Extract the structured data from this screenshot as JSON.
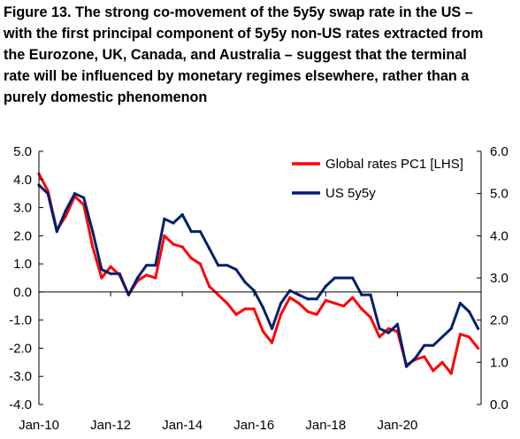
{
  "title_lines": [
    "Figure 13. The strong co-movement of the 5y5y swap rate in the US –",
    "with the first principal component of 5y5y non-US rates extracted from",
    "the Eurozone, UK, Canada, and Australia – suggest that the terminal",
    "rate will be influenced by monetary regimes elsewhere, rather than a",
    "purely domestic phenomenon"
  ],
  "chart_data": {
    "type": "line",
    "title": "Figure 13. The strong co-movement of the 5y5y swap rate in the US – with the first principal component of 5y5y non-US rates extracted from the Eurozone, UK, Canada, and Australia – suggest that the terminal rate will be influenced by monetary regimes elsewhere, rather than a purely domestic phenomenon",
    "x_ticks": [
      "Jan-10",
      "Jan-12",
      "Jan-14",
      "Jan-16",
      "Jan-18",
      "Jan-20"
    ],
    "x_range": [
      "2010-01",
      "2022-05"
    ],
    "y_left": {
      "range": [
        -4.0,
        5.0
      ],
      "ticks": [
        "5.0",
        "4.0",
        "3.0",
        "2.0",
        "1.0",
        "0.0",
        "-1.0",
        "-2.0",
        "-3.0",
        "-4.0"
      ]
    },
    "y_right": {
      "range": [
        0.0,
        6.0
      ],
      "ticks": [
        "6.0",
        "5.0",
        "4.0",
        "3.0",
        "2.0",
        "1.0",
        "0.0"
      ]
    },
    "zero_line": true,
    "grid": false,
    "legend_position": "top-right",
    "series": [
      {
        "name": "Global rates PC1 [LHS]",
        "axis": "left",
        "color": "#ff0000",
        "x": [
          "2010-01",
          "2010-04",
          "2010-07",
          "2010-10",
          "2011-01",
          "2011-04",
          "2011-07",
          "2011-10",
          "2012-01",
          "2012-04",
          "2012-07",
          "2012-10",
          "2013-01",
          "2013-04",
          "2013-07",
          "2013-10",
          "2014-01",
          "2014-04",
          "2014-07",
          "2014-10",
          "2015-01",
          "2015-04",
          "2015-07",
          "2015-10",
          "2016-01",
          "2016-04",
          "2016-07",
          "2016-10",
          "2017-01",
          "2017-04",
          "2017-07",
          "2017-10",
          "2018-01",
          "2018-04",
          "2018-07",
          "2018-10",
          "2019-01",
          "2019-04",
          "2019-07",
          "2019-10",
          "2020-01",
          "2020-04",
          "2020-07",
          "2020-10",
          "2021-01",
          "2021-04",
          "2021-07",
          "2021-10",
          "2022-01",
          "2022-04"
        ],
        "values": [
          4.2,
          3.6,
          2.2,
          2.7,
          3.4,
          3.1,
          1.6,
          0.5,
          0.9,
          0.6,
          -0.1,
          0.4,
          0.6,
          0.5,
          2.0,
          1.7,
          1.6,
          1.2,
          1.0,
          0.2,
          -0.1,
          -0.4,
          -0.8,
          -0.6,
          -0.6,
          -1.4,
          -1.8,
          -0.8,
          -0.2,
          -0.4,
          -0.7,
          -0.8,
          -0.3,
          -0.4,
          -0.5,
          -0.2,
          -0.6,
          -0.9,
          -1.6,
          -1.3,
          -1.4,
          -2.6,
          -2.4,
          -2.3,
          -2.8,
          -2.5,
          -2.9,
          -1.5,
          -1.6,
          -2.0
        ]
      },
      {
        "name": "US 5y5y",
        "axis": "right",
        "color": "#001f6e",
        "x": [
          "2010-01",
          "2010-04",
          "2010-07",
          "2010-10",
          "2011-01",
          "2011-04",
          "2011-07",
          "2011-10",
          "2012-01",
          "2012-04",
          "2012-07",
          "2012-10",
          "2013-01",
          "2013-04",
          "2013-07",
          "2013-10",
          "2014-01",
          "2014-04",
          "2014-07",
          "2014-10",
          "2015-01",
          "2015-04",
          "2015-07",
          "2015-10",
          "2016-01",
          "2016-04",
          "2016-07",
          "2016-10",
          "2017-01",
          "2017-04",
          "2017-07",
          "2017-10",
          "2018-01",
          "2018-04",
          "2018-07",
          "2018-10",
          "2019-01",
          "2019-04",
          "2019-07",
          "2019-10",
          "2020-01",
          "2020-04",
          "2020-07",
          "2020-10",
          "2021-01",
          "2021-04",
          "2021-07",
          "2021-10",
          "2022-01",
          "2022-04"
        ],
        "values": [
          5.2,
          5.0,
          4.1,
          4.6,
          5.0,
          4.9,
          4.1,
          3.2,
          3.1,
          3.1,
          2.6,
          3.0,
          3.3,
          3.3,
          4.4,
          4.3,
          4.5,
          4.1,
          4.1,
          3.7,
          3.3,
          3.3,
          3.2,
          2.9,
          2.7,
          2.3,
          1.8,
          2.4,
          2.7,
          2.6,
          2.5,
          2.5,
          2.8,
          3.0,
          3.0,
          3.0,
          2.6,
          2.6,
          1.8,
          1.7,
          1.9,
          0.9,
          1.1,
          1.4,
          1.4,
          1.6,
          1.8,
          2.4,
          2.2,
          1.8
        ]
      }
    ]
  }
}
